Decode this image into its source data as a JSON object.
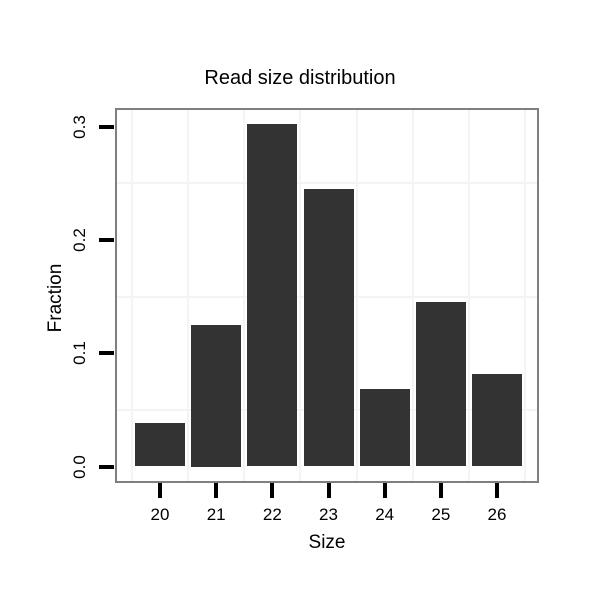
{
  "figure": {
    "background": "#ffffff"
  },
  "chart_data": {
    "type": "bar",
    "title": "Read size distribution",
    "xlabel": "Size",
    "ylabel": "Fraction",
    "categories": [
      "20",
      "21",
      "22",
      "23",
      "24",
      "25",
      "26"
    ],
    "values": [
      0.038,
      0.125,
      0.302,
      0.245,
      0.068,
      0.145,
      0.082
    ],
    "y_ticks": [
      "0.0",
      "0.1",
      "0.2",
      "0.3"
    ],
    "ylim": [
      -0.012,
      0.316
    ],
    "y_minor_gridlines": [
      0.05,
      0.15,
      0.25
    ],
    "x_minor_gridlines": [
      19.5,
      20.5,
      21.5,
      22.5,
      23.5,
      24.5,
      25.5,
      26.5
    ],
    "grid": "minor-lines-only",
    "legend": "none",
    "bar_color": "#333333",
    "panel_border_color": "#7f7f7f",
    "grid_color": "#f4f4f4",
    "tick_color": "#000000",
    "text_color": "#000000",
    "panel_background": "#ffffff"
  }
}
